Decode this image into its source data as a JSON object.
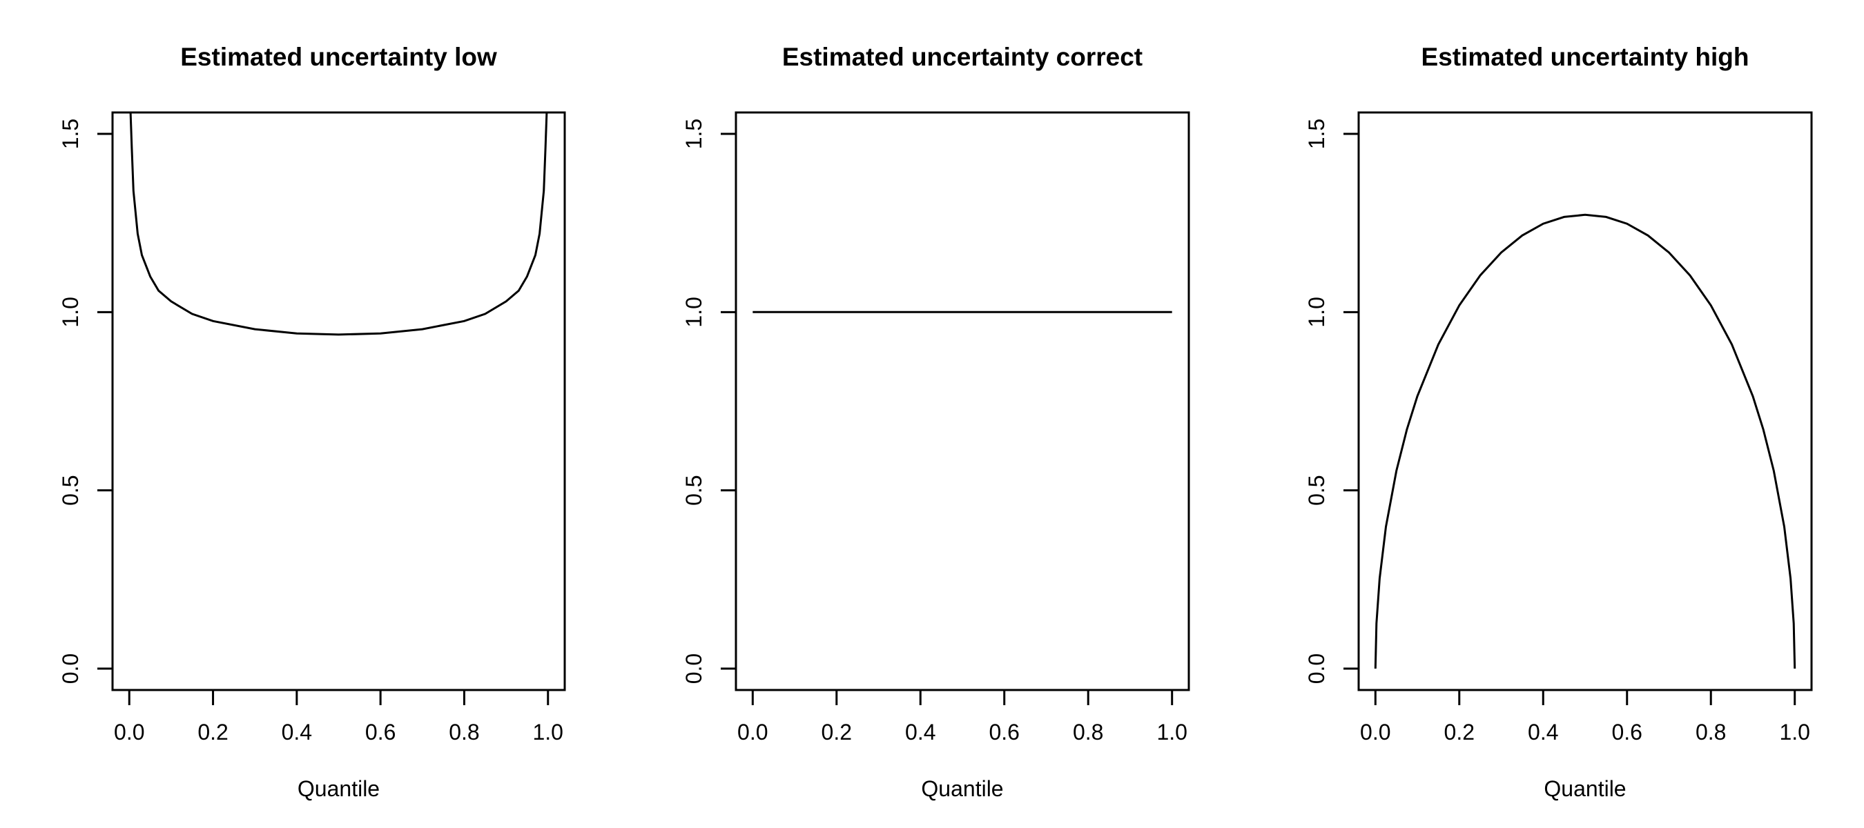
{
  "chart_data": [
    {
      "type": "line",
      "title": "Estimated uncertainty low",
      "xlabel": "Quantile",
      "ylabel": "",
      "xlim": [
        -0.04,
        1.04
      ],
      "ylim": [
        -0.06,
        1.56
      ],
      "x_ticks": [
        "0.0",
        "0.2",
        "0.4",
        "0.6",
        "0.8",
        "1.0"
      ],
      "y_ticks": [
        "0.0",
        "0.5",
        "1.0",
        "1.5"
      ],
      "series": [
        {
          "x": [
            0.0,
            0.003,
            0.006,
            0.01,
            0.02,
            0.03,
            0.05,
            0.07,
            0.1,
            0.15,
            0.2,
            0.3,
            0.4,
            0.5,
            0.6,
            0.7,
            0.8,
            0.85,
            0.9,
            0.93,
            0.95,
            0.97,
            0.98,
            0.99,
            0.994,
            0.997,
            1.0
          ],
          "y": [
            1.56,
            1.56,
            1.46,
            1.34,
            1.22,
            1.16,
            1.1,
            1.06,
            1.03,
            0.995,
            0.975,
            0.952,
            0.94,
            0.937,
            0.94,
            0.952,
            0.975,
            0.995,
            1.03,
            1.06,
            1.1,
            1.16,
            1.22,
            1.34,
            1.46,
            1.56,
            1.56
          ]
        }
      ]
    },
    {
      "type": "line",
      "title": "Estimated uncertainty correct",
      "xlabel": "Quantile",
      "ylabel": "",
      "xlim": [
        -0.04,
        1.04
      ],
      "ylim": [
        -0.06,
        1.56
      ],
      "x_ticks": [
        "0.0",
        "0.2",
        "0.4",
        "0.6",
        "0.8",
        "1.0"
      ],
      "y_ticks": [
        "0.0",
        "0.5",
        "1.0",
        "1.5"
      ],
      "series": [
        {
          "x": [
            0.0,
            1.0
          ],
          "y": [
            1.0,
            1.0
          ]
        }
      ]
    },
    {
      "type": "line",
      "title": "Estimated uncertainty high",
      "xlabel": "Quantile",
      "ylabel": "",
      "xlim": [
        -0.04,
        1.04
      ],
      "ylim": [
        -0.06,
        1.56
      ],
      "x_ticks": [
        "0.0",
        "0.2",
        "0.4",
        "0.6",
        "0.8",
        "1.0"
      ],
      "y_ticks": [
        "0.0",
        "0.5",
        "1.0",
        "1.5"
      ],
      "series": [
        {
          "x": [
            0.0,
            0.0025,
            0.01,
            0.025,
            0.05,
            0.075,
            0.1,
            0.15,
            0.2,
            0.25,
            0.3,
            0.35,
            0.4,
            0.45,
            0.5,
            0.55,
            0.6,
            0.65,
            0.7,
            0.75,
            0.8,
            0.85,
            0.9,
            0.925,
            0.95,
            0.975,
            0.99,
            0.9975,
            1.0
          ],
          "y": [
            0.0,
            0.127,
            0.253,
            0.398,
            0.555,
            0.671,
            0.764,
            0.909,
            1.019,
            1.103,
            1.167,
            1.215,
            1.248,
            1.267,
            1.273,
            1.267,
            1.248,
            1.215,
            1.167,
            1.103,
            1.019,
            0.909,
            0.764,
            0.671,
            0.555,
            0.398,
            0.253,
            0.127,
            0.0
          ]
        }
      ]
    }
  ]
}
